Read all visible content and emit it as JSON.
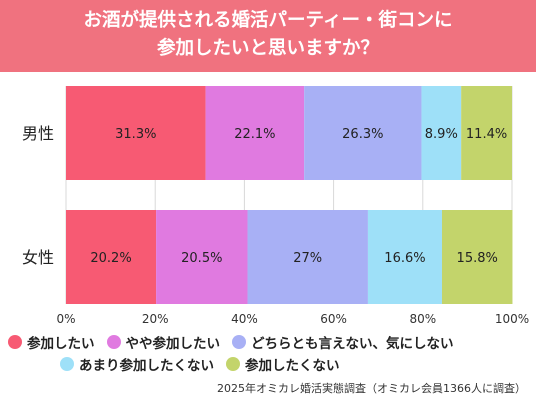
{
  "title_lines": [
    "お酒が提供される婚活パーティー・街コンに",
    "参加したいと思いますか？"
  ],
  "source_note": "2025年オミカレ婚活実態調査（オミカレ会員1366人に調査）",
  "chart_data": {
    "type": "bar",
    "orientation": "horizontal",
    "stacked": true,
    "title": "お酒が提供される婚活パーティー・街コンに参加したいと思いますか？",
    "categories": [
      "男性",
      "女性"
    ],
    "series": [
      {
        "name": "参加したい",
        "color": "#f75a73",
        "values": [
          31.3,
          20.2
        ],
        "labels": [
          "31.3%",
          "20.2%"
        ]
      },
      {
        "name": "やや参加したい",
        "color": "#e07ae0",
        "values": [
          22.1,
          20.5
        ],
        "labels": [
          "22.1%",
          "20.5%"
        ]
      },
      {
        "name": "どちらとも言えない、気にしない",
        "color": "#a8b0f5",
        "values": [
          26.3,
          27
        ],
        "labels": [
          "26.3%",
          "27%"
        ]
      },
      {
        "name": "あまり参加したくない",
        "color": "#9ee0f8",
        "values": [
          8.9,
          16.6
        ],
        "labels": [
          "8.9%",
          "16.6%"
        ]
      },
      {
        "name": "参加したくない",
        "color": "#c3d46b",
        "values": [
          11.4,
          15.8
        ],
        "labels": [
          "11.4%",
          "15.8%"
        ]
      }
    ],
    "xlim": [
      0,
      100
    ],
    "x_ticks": [
      "0%",
      "20%",
      "40%",
      "60%",
      "80%",
      "100%"
    ],
    "x_tick_values": [
      0,
      20,
      40,
      60,
      80,
      100
    ],
    "grid": true,
    "legend": "bottom"
  }
}
